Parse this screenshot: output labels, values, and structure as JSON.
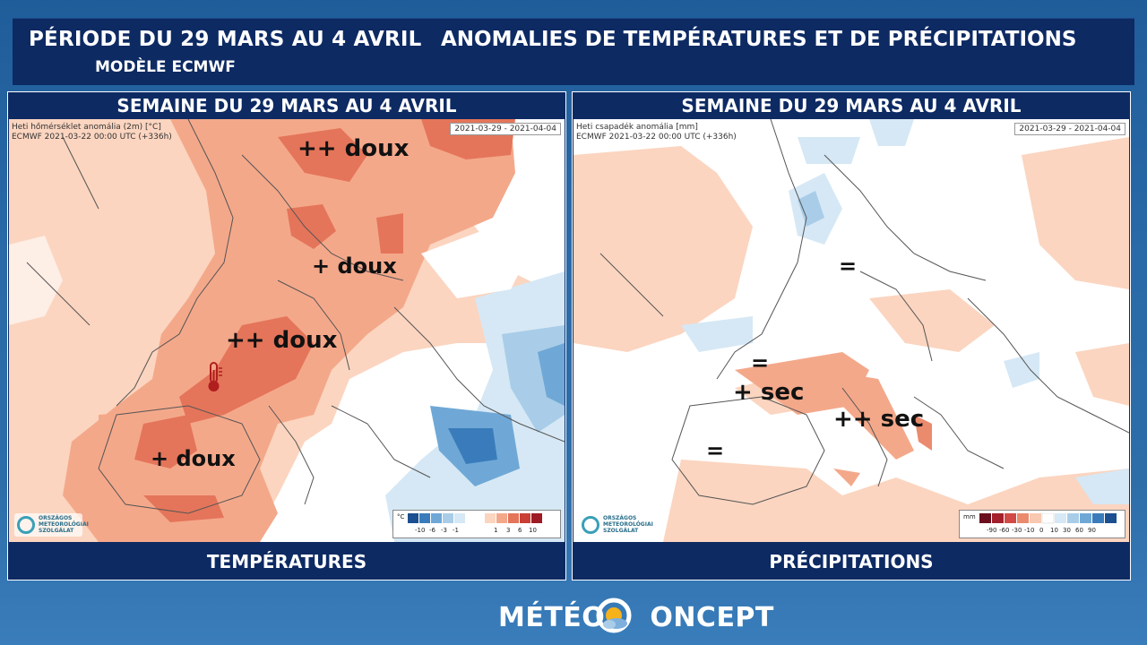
{
  "header": {
    "period": "PÉRIODE DU 29 MARS AU 4 AVRIL",
    "model": "MODÈLE ECMWF",
    "title": "ANOMALIES DE TEMPÉRATURES ET DE PRÉCIPITATIONS"
  },
  "temp_panel": {
    "title": "SEMAINE DU 29 MARS AU 4 AVRIL",
    "footer": "TEMPÉRATURES",
    "info_line1": "Heti hőmérséklet anomália (2m) [°C]",
    "info_line2": "ECMWF 2021-03-22 00:00 UTC (+336h)",
    "date_range": "2021-03-29 - 2021-04-04",
    "annotations": [
      "++ doux",
      "+ doux",
      "++ doux",
      "+ doux"
    ],
    "legend_unit": "°C",
    "legend_ticks": [
      "-10",
      "-6",
      "-3",
      "-1",
      "1",
      "3",
      "6",
      "10"
    ],
    "legend_colors": [
      "#1b4f8f",
      "#3a7cbb",
      "#6fa8d6",
      "#a9cde8",
      "#d6e8f5",
      "#ffffff",
      "#fbd5c0",
      "#f4a88a",
      "#e4755a",
      "#c93f36",
      "#9e1a25"
    ],
    "logo_text": [
      "ORSZÁGOS",
      "METEOROLÓGIAI",
      "SZOLGÁLAT"
    ],
    "icon": "thermometer-icon"
  },
  "precip_panel": {
    "title": "SEMAINE DU 29 MARS AU 4 AVRIL",
    "footer": "PRÉCIPITATIONS",
    "info_line1": "Heti csapadék anomália [mm]",
    "info_line2": "ECMWF 2021-03-22 00:00 UTC (+336h)",
    "date_range": "2021-03-29 - 2021-04-04",
    "annotations": [
      "=",
      "=",
      "+ sec",
      "++ sec",
      "="
    ],
    "legend_unit": "mm",
    "legend_ticks": [
      "-90",
      "-60",
      "-30",
      "-10",
      "0",
      "10",
      "30",
      "60",
      "90"
    ],
    "legend_colors": [
      "#6b0f1e",
      "#a3202c",
      "#d24a45",
      "#eb8b6e",
      "#f8c8b0",
      "#ffffff",
      "#d6e8f5",
      "#a9cde8",
      "#6fa8d6",
      "#3a7cbb",
      "#1b4f8f"
    ],
    "logo_text": [
      "ORSZÁGOS",
      "METEOROLÓGIAI",
      "SZOLGÁLAT"
    ]
  },
  "brand": {
    "left": "MÉTÉO",
    "right": "ONCEPT"
  }
}
